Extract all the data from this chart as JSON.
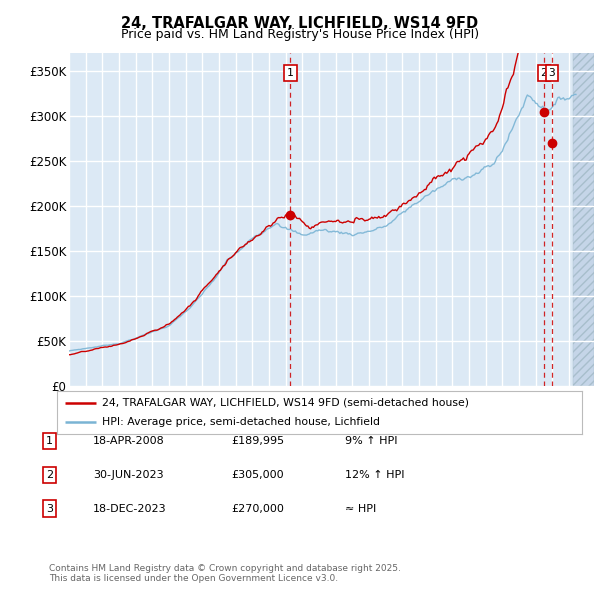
{
  "title": "24, TRAFALGAR WAY, LICHFIELD, WS14 9FD",
  "subtitle": "Price paid vs. HM Land Registry's House Price Index (HPI)",
  "ylabel_ticks": [
    "£0",
    "£50K",
    "£100K",
    "£150K",
    "£200K",
    "£250K",
    "£300K",
    "£350K"
  ],
  "ylabel_values": [
    0,
    50000,
    100000,
    150000,
    200000,
    250000,
    300000,
    350000
  ],
  "ylim": [
    0,
    370000
  ],
  "xlim_start": 1995.0,
  "xlim_end": 2026.5,
  "background_color": "#dce9f5",
  "fig_background_color": "#ffffff",
  "grid_color": "#ffffff",
  "red_line_color": "#cc0000",
  "blue_line_color": "#7ab4d4",
  "legend_label_red": "24, TRAFALGAR WAY, LICHFIELD, WS14 9FD (semi-detached house)",
  "legend_label_blue": "HPI: Average price, semi-detached house, Lichfield",
  "sale1_x": 2008.29,
  "sale1_y": 189995,
  "sale1_label": "1",
  "sale2_x": 2023.5,
  "sale2_y": 305000,
  "sale2_label": "2",
  "sale3_x": 2023.96,
  "sale3_y": 270000,
  "sale3_label": "3",
  "hatch_start": 2025.25,
  "table_data": [
    [
      "1",
      "18-APR-2008",
      "£189,995",
      "9% ↑ HPI"
    ],
    [
      "2",
      "30-JUN-2023",
      "£305,000",
      "12% ↑ HPI"
    ],
    [
      "3",
      "18-DEC-2023",
      "£270,000",
      "≈ HPI"
    ]
  ],
  "footer": "Contains HM Land Registry data © Crown copyright and database right 2025.\nThis data is licensed under the Open Government Licence v3.0."
}
